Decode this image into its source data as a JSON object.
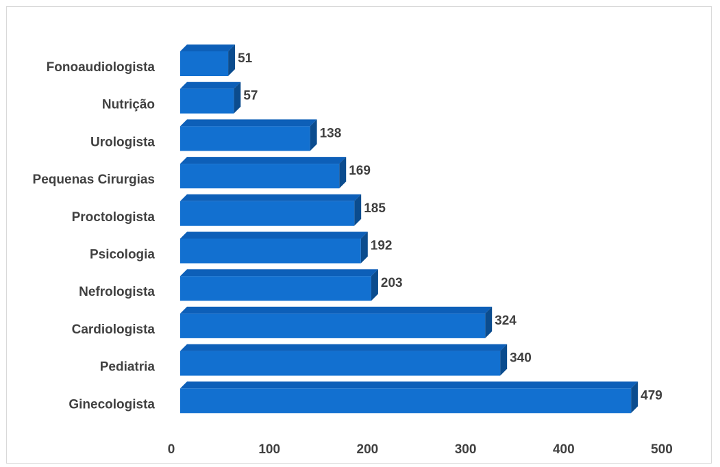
{
  "chart_data": {
    "type": "bar",
    "orientation": "horizontal",
    "style": "3d",
    "categories": [
      "Fonoaudiologista",
      "Nutrição",
      "Urologista",
      "Pequenas Cirurgias",
      "Proctologista",
      "Psicologia",
      "Nefrologista",
      "Cardiologista",
      "Pediatria",
      "Ginecologista"
    ],
    "values": [
      51,
      57,
      138,
      169,
      185,
      192,
      203,
      324,
      340,
      479
    ],
    "xlim": [
      0,
      500
    ],
    "xticks": [
      "0",
      "100",
      "200",
      "300",
      "400",
      "500"
    ],
    "grid": false,
    "legend": "none",
    "colors": {
      "bar_front": "#1270D0",
      "bar_top": "#0D5FB8",
      "bar_side": "#0B4C8E",
      "text": "#404040"
    }
  }
}
